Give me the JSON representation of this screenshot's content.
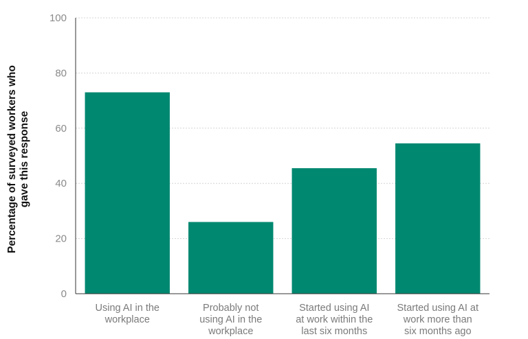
{
  "chart_data": {
    "type": "bar",
    "categories": [
      [
        "Using AI in the",
        "workplace"
      ],
      [
        "Probably not",
        "using AI in the",
        "workplace"
      ],
      [
        "Started using AI",
        "at work within the",
        "last six months"
      ],
      [
        "Started using AI at",
        "work more than",
        "six months ago"
      ]
    ],
    "values": [
      73,
      26,
      45.5,
      54.5
    ],
    "ylabel": [
      "Percentage of surveyed workers who",
      "gave this response"
    ],
    "ylim": [
      0,
      100
    ],
    "yticks": [
      0,
      20,
      40,
      60,
      80,
      100
    ],
    "grid": true,
    "colors": {
      "bar": "#008870",
      "grid": "#d4d4d4",
      "axis": "#333333"
    }
  }
}
